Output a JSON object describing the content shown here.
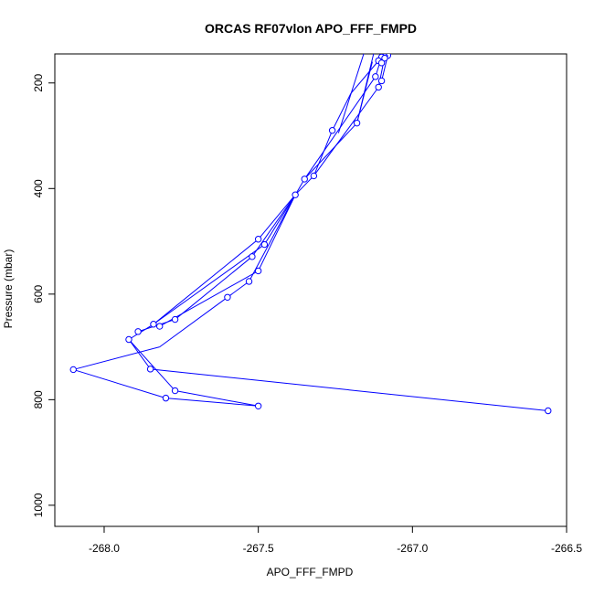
{
  "chart_data": {
    "type": "scatter",
    "title": "ORCAS RF07vlon APO_FFF_FMPD",
    "xlabel": "APO_FFF_FMPD",
    "ylabel": "Pressure (mbar)",
    "xlim": [
      -268.16,
      -266.5
    ],
    "ylim": [
      1040,
      145
    ],
    "y_reversed": true,
    "xticks": [
      -268.0,
      -267.5,
      -267.0,
      -266.5
    ],
    "xtick_labels": [
      "-268.0",
      "-267.5",
      "-267.0",
      "-266.5"
    ],
    "yticks": [
      200,
      400,
      600,
      800,
      1000
    ],
    "ytick_labels": [
      "200",
      "400",
      "600",
      "800",
      "1000"
    ],
    "grid": false,
    "legend": "none",
    "line_color": "#0000ff",
    "marker": "open-circle",
    "points": [
      {
        "x": -267.08,
        "y": 148
      },
      {
        "x": -267.09,
        "y": 150
      },
      {
        "x": -267.1,
        "y": 151
      },
      {
        "x": -267.09,
        "y": 153
      },
      {
        "x": -267.11,
        "y": 158
      },
      {
        "x": -267.1,
        "y": 162
      },
      {
        "x": -267.12,
        "y": 188
      },
      {
        "x": -267.1,
        "y": 196
      },
      {
        "x": -267.11,
        "y": 208
      },
      {
        "x": -267.18,
        "y": 276
      },
      {
        "x": -267.26,
        "y": 290
      },
      {
        "x": -267.32,
        "y": 376
      },
      {
        "x": -267.35,
        "y": 382
      },
      {
        "x": -267.38,
        "y": 412
      },
      {
        "x": -267.5,
        "y": 496
      },
      {
        "x": -267.48,
        "y": 506
      },
      {
        "x": -267.52,
        "y": 529
      },
      {
        "x": -267.5,
        "y": 556
      },
      {
        "x": -267.53,
        "y": 576
      },
      {
        "x": -267.6,
        "y": 606
      },
      {
        "x": -267.77,
        "y": 648
      },
      {
        "x": -267.84,
        "y": 657
      },
      {
        "x": -267.82,
        "y": 661
      },
      {
        "x": -267.89,
        "y": 671
      },
      {
        "x": -267.92,
        "y": 686
      },
      {
        "x": -268.1,
        "y": 743
      },
      {
        "x": -267.85,
        "y": 742
      },
      {
        "x": -267.77,
        "y": 783
      },
      {
        "x": -267.8,
        "y": 797
      },
      {
        "x": -267.5,
        "y": 812
      },
      {
        "x": -266.56,
        "y": 821
      }
    ],
    "path": [
      [
        -267.11,
        158
      ],
      [
        -267.2,
        220
      ],
      [
        -267.26,
        290
      ],
      [
        -267.32,
        376
      ],
      [
        -267.38,
        412
      ],
      [
        -267.5,
        496
      ],
      [
        -267.84,
        657
      ],
      [
        -267.92,
        686
      ],
      [
        -267.85,
        742
      ],
      [
        -266.56,
        821
      ]
    ],
    "extra_segments": [
      [
        [
          -267.08,
          148
        ],
        [
          -267.1,
          196
        ]
      ],
      [
        [
          -267.09,
          150
        ],
        [
          -267.11,
          208
        ]
      ],
      [
        [
          -267.1,
          151
        ],
        [
          -267.12,
          188
        ]
      ],
      [
        [
          -267.15,
          130
        ],
        [
          -267.24,
          295
        ]
      ],
      [
        [
          -267.12,
          130
        ],
        [
          -267.18,
          276
        ]
      ],
      [
        [
          -267.13,
          160
        ],
        [
          -267.18,
          276
        ]
      ],
      [
        [
          -267.12,
          188
        ],
        [
          -267.35,
          382
        ]
      ],
      [
        [
          -267.11,
          208
        ],
        [
          -267.32,
          376
        ]
      ],
      [
        [
          -267.18,
          276
        ],
        [
          -267.35,
          382
        ]
      ],
      [
        [
          -267.35,
          382
        ],
        [
          -267.38,
          412
        ]
      ],
      [
        [
          -267.38,
          412
        ],
        [
          -267.48,
          506
        ]
      ],
      [
        [
          -267.48,
          506
        ],
        [
          -267.84,
          657
        ]
      ],
      [
        [
          -267.38,
          412
        ],
        [
          -267.5,
          556
        ]
      ],
      [
        [
          -267.38,
          412
        ],
        [
          -267.52,
          529
        ]
      ],
      [
        [
          -267.52,
          529
        ],
        [
          -267.77,
          648
        ]
      ],
      [
        [
          -267.77,
          648
        ],
        [
          -267.89,
          671
        ]
      ],
      [
        [
          -267.5,
          556
        ],
        [
          -267.82,
          661
        ]
      ],
      [
        [
          -267.38,
          412
        ],
        [
          -267.53,
          576
        ]
      ],
      [
        [
          -267.53,
          576
        ],
        [
          -267.6,
          606
        ]
      ],
      [
        [
          -267.6,
          606
        ],
        [
          -267.82,
          700
        ]
      ],
      [
        [
          -267.82,
          700
        ],
        [
          -268.1,
          743
        ]
      ],
      [
        [
          -268.1,
          743
        ],
        [
          -267.8,
          797
        ]
      ],
      [
        [
          -267.8,
          797
        ],
        [
          -267.5,
          812
        ]
      ],
      [
        [
          -267.92,
          686
        ],
        [
          -267.77,
          783
        ]
      ],
      [
        [
          -267.77,
          783
        ],
        [
          -267.5,
          812
        ]
      ]
    ]
  }
}
